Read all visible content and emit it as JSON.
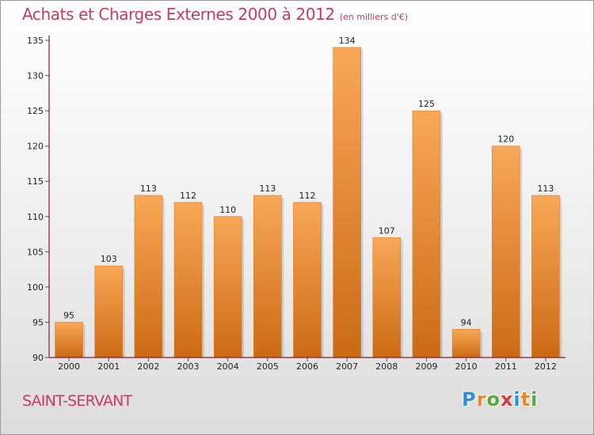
{
  "title": "Achats et Charges Externes 2000 à 2012",
  "unit": "(en milliers d'€)",
  "commune": "SAINT-SERVANT",
  "logo": {
    "letters": [
      "P",
      "r",
      "o",
      "x",
      "i",
      "t",
      "i"
    ],
    "colors": [
      "#2e8fd6",
      "#e8872a",
      "#5aa83c",
      "#d33c3c",
      "#2e8fd6",
      "#e8872a",
      "#5aa83c"
    ]
  },
  "colors": {
    "title": "#c63b64",
    "bar_top": "#f7a857",
    "bar_bottom": "#cc6a14",
    "axis": "#8b1a3a"
  },
  "chart_data": {
    "type": "bar",
    "categories": [
      "2000",
      "2001",
      "2002",
      "2003",
      "2004",
      "2005",
      "2006",
      "2007",
      "2008",
      "2009",
      "2010",
      "2011",
      "2012"
    ],
    "values": [
      95,
      103,
      113,
      112,
      110,
      113,
      112,
      134,
      107,
      125,
      94,
      120,
      113
    ],
    "ylim": [
      90,
      135
    ],
    "yticks": [
      90,
      95,
      100,
      105,
      110,
      115,
      120,
      125,
      130,
      135
    ],
    "grid": false,
    "legend": "none",
    "data_labels": true
  }
}
